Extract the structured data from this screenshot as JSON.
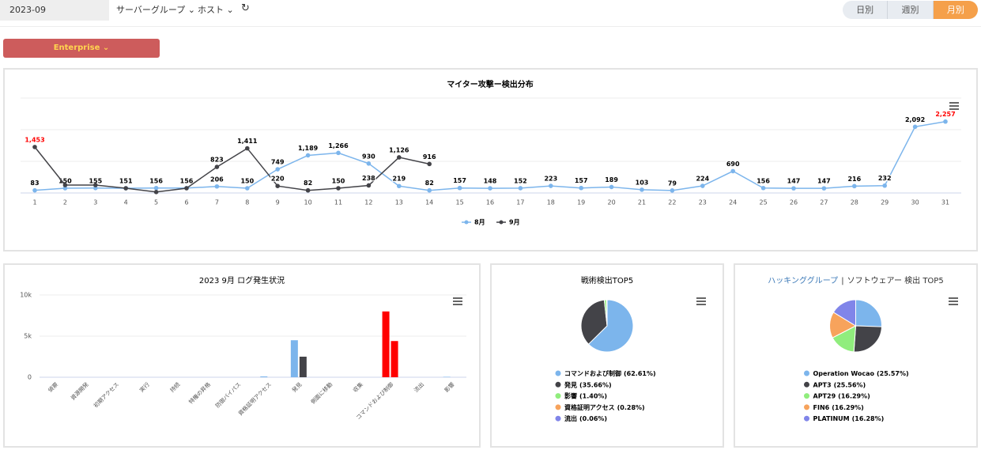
{
  "toolbar": {
    "date": "2023-09",
    "filters": [
      "サーバーグループ",
      "ホスト"
    ],
    "periods": [
      "日別",
      "週別",
      "月別"
    ],
    "active_period": 2,
    "framework": "Enterprise"
  },
  "chart_data": [
    {
      "type": "line",
      "title": "マイター攻撃ー検出分布",
      "categories": [
        "1",
        "2",
        "3",
        "4",
        "5",
        "6",
        "7",
        "8",
        "9",
        "10",
        "11",
        "12",
        "13",
        "14",
        "15",
        "16",
        "17",
        "18",
        "19",
        "20",
        "21",
        "22",
        "23",
        "24",
        "25",
        "26",
        "27",
        "28",
        "29",
        "30",
        "31"
      ],
      "series": [
        {
          "name": "8月",
          "color": "#7cb5ec",
          "values": [
            83,
            150,
            155,
            151,
            156,
            156,
            206,
            150,
            749,
            1189,
            1266,
            930,
            219,
            82,
            157,
            148,
            152,
            223,
            157,
            189,
            103,
            79,
            224,
            690,
            156,
            147,
            147,
            216,
            232,
            2092,
            2257
          ],
          "value_labels": [
            "83",
            "150",
            "155",
            "151",
            "156",
            "156",
            "206",
            "150",
            "749",
            "1,189",
            "1,266",
            "930",
            "219",
            "82",
            "157",
            "148",
            "152",
            "223",
            "157",
            "189",
            "103",
            "79",
            "224",
            "690",
            "156",
            "147",
            "147",
            "216",
            "232",
            "2,092",
            "2,257"
          ]
        },
        {
          "name": "9月",
          "color": "#434348",
          "values": [
            1453,
            250,
            250,
            150,
            30,
            150,
            823,
            1411,
            220,
            82,
            150,
            238,
            1126,
            916,
            null,
            null,
            null,
            null,
            null,
            null,
            null,
            null,
            null,
            null,
            null,
            null,
            null,
            null,
            null,
            null,
            null
          ],
          "value_labels": [
            "1,453",
            null,
            null,
            null,
            null,
            null,
            "823",
            "1,411",
            "220",
            "82",
            "150",
            "238",
            "1,126",
            "916",
            null,
            null,
            null,
            null,
            null,
            null,
            null,
            null,
            null,
            null,
            null,
            null,
            null,
            null,
            null,
            null,
            null
          ]
        }
      ],
      "ylim": [
        0,
        3000
      ],
      "ygrid": [
        0,
        1000,
        2000,
        3000
      ],
      "max_label_color": "#ff0000",
      "legend": "bottom"
    },
    {
      "type": "bar",
      "title": "2023 9月 ログ発生状況",
      "categories": [
        "偵察",
        "資源開発",
        "初期アクセス",
        "実行",
        "持続",
        "特権の昇格",
        "防御バイパス",
        "資格証明アクセス",
        "発見",
        "側面に移動",
        "収集",
        "コマンドおよび制御",
        "流出",
        "影響"
      ],
      "series": [
        {
          "values": [
            0,
            0,
            0,
            0,
            0,
            0,
            0,
            100,
            4500,
            0,
            0,
            8000,
            0,
            50
          ],
          "colors": [
            "#7cb5ec",
            "#7cb5ec",
            "#7cb5ec",
            "#7cb5ec",
            "#7cb5ec",
            "#7cb5ec",
            "#7cb5ec",
            "#7cb5ec",
            "#7cb5ec",
            "#7cb5ec",
            "#7cb5ec",
            "#ff0000",
            "#7cb5ec",
            "#7cb5ec"
          ]
        },
        {
          "values": [
            0,
            0,
            0,
            0,
            0,
            0,
            0,
            0,
            2500,
            0,
            0,
            4400,
            0,
            0
          ],
          "colors": [
            "#434348",
            "#434348",
            "#434348",
            "#434348",
            "#434348",
            "#434348",
            "#434348",
            "#434348",
            "#434348",
            "#434348",
            "#434348",
            "#ff0000",
            "#434348",
            "#434348"
          ]
        }
      ],
      "ylim": [
        0,
        10000
      ],
      "yticks": [
        0,
        {
          "value": 5000,
          "label": "5k"
        },
        {
          "value": 10000,
          "label": "10k"
        }
      ],
      "grid": true
    },
    {
      "type": "pie",
      "title": "戦術検出TOP5",
      "categories": [
        "コマンドおよび制御",
        "発見",
        "影響",
        "資格証明アクセス",
        "流出"
      ],
      "values": [
        62.61,
        35.66,
        1.4,
        0.28,
        0.06
      ],
      "value_labels": [
        "(62.61%)",
        "(35.66%)",
        "(1.40%)",
        "(0.28%)",
        "(0.06%)"
      ],
      "colors": [
        "#7cb5ec",
        "#434348",
        "#90ed7d",
        "#f7a35c",
        "#8085e9"
      ],
      "legend": "bottom"
    },
    {
      "type": "pie",
      "title": [
        "ハッキンググループ",
        "|",
        "ソフトウェアー 検出 TOP5"
      ],
      "categories": [
        "Operation Wocao",
        "APT3",
        "APT29",
        "FIN6",
        "PLATINUM"
      ],
      "values": [
        25.57,
        25.56,
        16.29,
        16.29,
        16.28
      ],
      "value_labels": [
        "(25.57%)",
        "(25.56%)",
        "(16.29%)",
        "(16.29%)",
        "(16.28%)"
      ],
      "colors": [
        "#7cb5ec",
        "#434348",
        "#90ed7d",
        "#f7a35c",
        "#8085e9"
      ],
      "legend": "bottom"
    }
  ]
}
